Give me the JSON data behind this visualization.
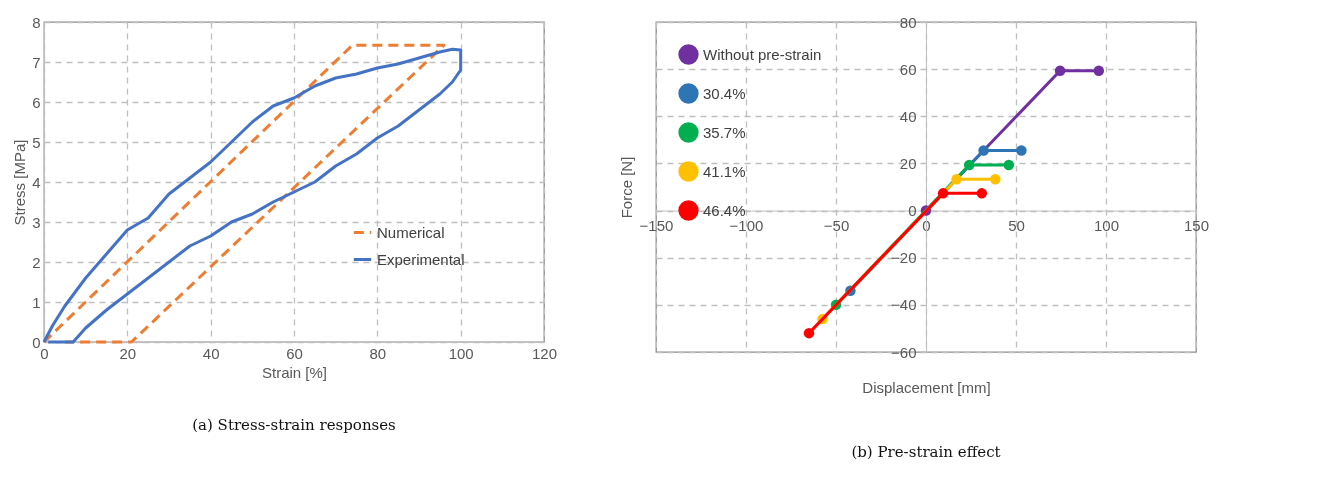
{
  "chart_data": [
    {
      "type": "line",
      "title": "(a) Stress-strain responses",
      "xlabel": "Strain [%]",
      "ylabel": "Stress [MPa]",
      "xlim": [
        0,
        120
      ],
      "xticks": [
        0,
        20,
        40,
        60,
        80,
        100,
        120
      ],
      "ylim": [
        0,
        8
      ],
      "yticks": [
        0,
        1,
        2,
        3,
        4,
        5,
        6,
        7,
        8
      ],
      "grid": true,
      "legend": "bottom right",
      "marker": "none",
      "series": [
        {
          "name": "Numerical",
          "color": "#ed7d31",
          "line_style": "dashed",
          "x": [
            0,
            74,
            96,
            21,
            5
          ],
          "values": [
            0,
            7.42,
            7.42,
            0,
            0
          ]
        },
        {
          "name": "Experimental",
          "color": "#4472c4",
          "line_style": "solid",
          "x": [
            0,
            2,
            5,
            10,
            15,
            20,
            25,
            30,
            35,
            40,
            45,
            50,
            55,
            60,
            65,
            70,
            75,
            80,
            85,
            90,
            95,
            98,
            100,
            100,
            98,
            95,
            90,
            85,
            80,
            75,
            70,
            65,
            60,
            55,
            50,
            45,
            40,
            35,
            30,
            25,
            20,
            15,
            10,
            7,
            1
          ],
          "values": [
            0,
            0.4,
            0.9,
            1.6,
            2.2,
            2.8,
            3.1,
            3.7,
            4.1,
            4.5,
            5.0,
            5.5,
            5.9,
            6.1,
            6.4,
            6.6,
            6.7,
            6.85,
            6.95,
            7.1,
            7.25,
            7.32,
            7.3,
            6.8,
            6.5,
            6.2,
            5.8,
            5.4,
            5.1,
            4.7,
            4.4,
            4.0,
            3.75,
            3.5,
            3.2,
            3.0,
            2.65,
            2.4,
            2.0,
            1.6,
            1.2,
            0.8,
            0.35,
            0,
            0
          ]
        }
      ]
    },
    {
      "type": "line",
      "title": "(b) Pre-strain effect",
      "xlabel": "Displacement [mm]",
      "ylabel": "Force [N]",
      "xlim": [
        -150,
        150
      ],
      "xticks": [
        -150,
        -100,
        -50,
        0,
        50,
        100,
        150
      ],
      "ylim": [
        -60,
        80
      ],
      "yticks": [
        -60,
        -40,
        -20,
        0,
        20,
        40,
        60,
        80
      ],
      "grid": true,
      "legend": "top left",
      "marker": "circle",
      "series": [
        {
          "name": "Without pre-strain",
          "color": "#7030a0",
          "x": [
            0,
            74.5,
            96
          ],
          "values": [
            0,
            59.3,
            59.3
          ]
        },
        {
          "name": "30.4%",
          "color": "#2e75b6",
          "x": [
            -42,
            32,
            53
          ],
          "values": [
            -34,
            25.5,
            25.5
          ]
        },
        {
          "name": "35.7%",
          "color": "#00b050",
          "x": [
            -50,
            24,
            46
          ],
          "values": [
            -40,
            19.3,
            19.3
          ]
        },
        {
          "name": "41.1%",
          "color": "#ffc000",
          "x": [
            -57.5,
            17,
            38.5
          ],
          "values": [
            -46,
            13.3,
            13.3
          ]
        },
        {
          "name": "46.4%",
          "color": "#ff0000",
          "x": [
            -65,
            9.5,
            31
          ],
          "values": [
            -52,
            7.3,
            7.3
          ]
        }
      ]
    }
  ]
}
